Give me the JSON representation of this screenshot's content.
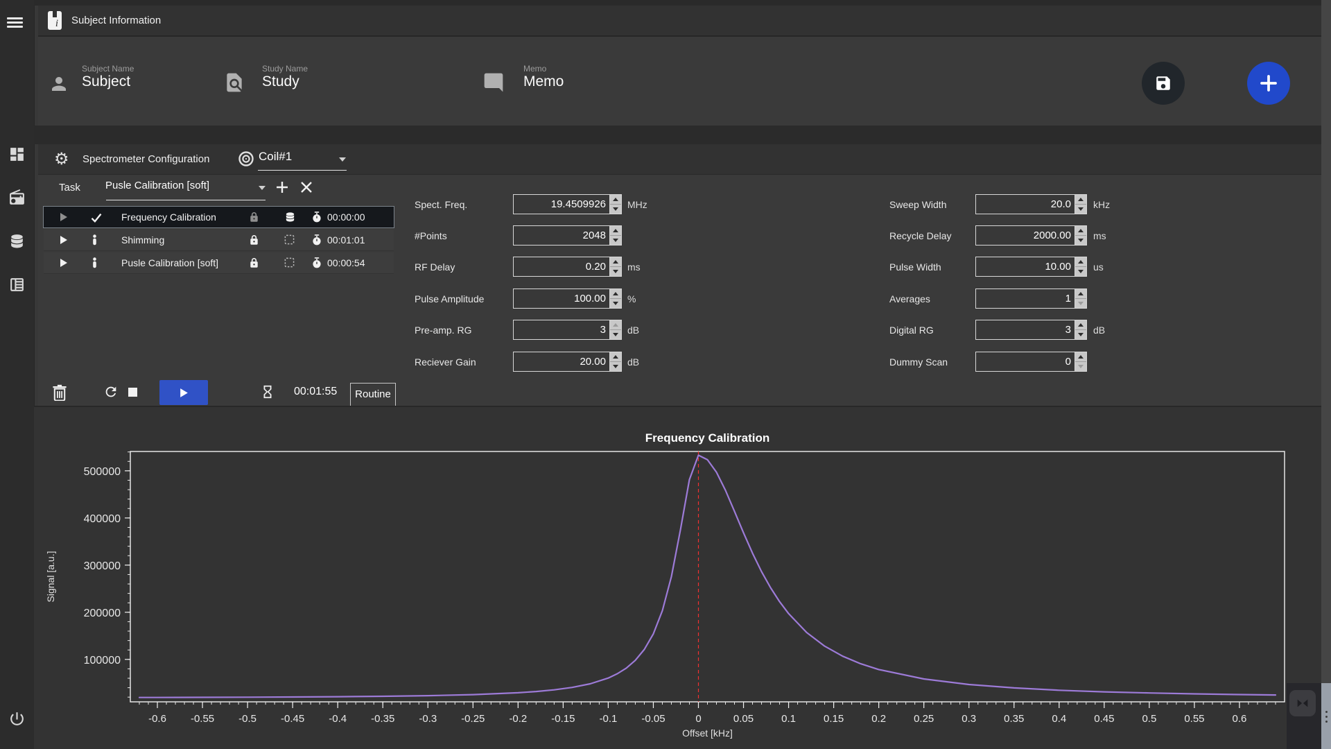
{
  "colors": {
    "background": "#383838",
    "panel_dark": "#323232",
    "sidebar": "#2c2c2c",
    "accent_blue": "#2149cb",
    "play_blue": "#3052c6",
    "line_purple": "#9d7bd8",
    "marker_red": "#f03030",
    "selected_row": "#15181c",
    "input_border": "#d8d8d8"
  },
  "icons": {
    "menu-icon": "hamburger (3 bars)",
    "dashboard-icon": "grid dashboard",
    "radio-icon": "radio device",
    "database-icon": "stacked discs",
    "news-icon": "article card",
    "power-icon": "power symbol",
    "subject-info-icon": "document with i",
    "person-icon": "person silhouette",
    "study-icon": "document with magnifier",
    "memo-icon": "chat bubble",
    "save-icon": "floppy disk",
    "add-icon": "plus",
    "gear-icon": "⚙",
    "coil-icon": "concentric circles",
    "plus-icon": "+",
    "close-icon": "✕",
    "check-icon": "✓",
    "lock-icon": "padlock",
    "region-icon": "dashed square",
    "stopwatch-icon": "timer",
    "trash-icon": "trash can",
    "rerun-icon": "refresh arrow",
    "stop-icon": "square",
    "play-icon": "triangle",
    "hourglass-icon": "hourglass",
    "flip-icon": "bowtie triangles"
  },
  "titlebar": {
    "title": "Subject Information"
  },
  "subject_panel": {
    "fields": [
      {
        "icon": "person-icon",
        "label": "Subject Name",
        "value": "Subject"
      },
      {
        "icon": "study-icon",
        "label": "Study Name",
        "value": "Study"
      },
      {
        "icon": "memo-icon",
        "label": "Memo",
        "value": "Memo"
      }
    ]
  },
  "config": {
    "title": "Spectrometer Configuration",
    "coil_select": {
      "value": "Coil#1"
    },
    "task_label": "Task",
    "task_select": {
      "value": "Pusle Calibration [soft]"
    },
    "tasks": [
      {
        "name": "Frequency Calibration",
        "time": "00:00:00",
        "status_icon": "check-icon",
        "type_icon": "database-icon",
        "selected": true
      },
      {
        "name": "Shimming",
        "time": "00:01:01",
        "status_icon": "person-icon",
        "type_icon": "region-icon",
        "selected": false
      },
      {
        "name": "Pusle Calibration [soft]",
        "time": "00:00:54",
        "status_icon": "person-icon",
        "type_icon": "region-icon",
        "selected": false
      }
    ],
    "parameters_left": [
      {
        "label": "Spect. Freq.",
        "value": "19.4509926",
        "unit": "MHz",
        "dim": null
      },
      {
        "label": "#Points",
        "value": "2048",
        "unit": "",
        "dim": null
      },
      {
        "label": "RF Delay",
        "value": "0.20",
        "unit": "ms",
        "dim": null
      },
      {
        "label": "Pulse Amplitude",
        "value": "100.00",
        "unit": "%",
        "dim": null
      },
      {
        "label": "Pre-amp. RG",
        "value": "3",
        "unit": "dB",
        "dim": "up"
      },
      {
        "label": "Reciever Gain",
        "value": "20.00",
        "unit": "dB",
        "dim": null
      }
    ],
    "parameters_right": [
      {
        "label": "Sweep Width",
        "value": "20.0",
        "unit": "kHz",
        "dim": null
      },
      {
        "label": "Recycle Delay",
        "value": "2000.00",
        "unit": "ms",
        "dim": null
      },
      {
        "label": "Pulse Width",
        "value": "10.00",
        "unit": "us",
        "dim": null
      },
      {
        "label": "Averages",
        "value": "1",
        "unit": "",
        "dim": "down"
      },
      {
        "label": "Digital RG",
        "value": "3",
        "unit": "dB",
        "dim": null
      },
      {
        "label": "Dummy Scan",
        "value": "0",
        "unit": "",
        "dim": "down"
      }
    ],
    "controls": {
      "elapsed": "00:01:55",
      "tab_label": "Routine"
    }
  },
  "chart_data": {
    "type": "line",
    "title": "Frequency Calibration",
    "xlabel": "Offset [kHz]",
    "ylabel": "Signal [a.u.]",
    "xlim": [
      -0.63,
      0.65
    ],
    "ylim": [
      10000,
      541000
    ],
    "x_tick_min": -0.6,
    "x_tick_max": 0.6,
    "x_tick_step": 0.05,
    "x_minor_step": 0.01,
    "y_ticks": [
      100000,
      200000,
      300000,
      400000,
      500000
    ],
    "y_minor_step": 20000,
    "grid": false,
    "legend": null,
    "line_color": "#9d7bd8",
    "marker_line": {
      "x": 0,
      "color": "#f03030",
      "style": "dashed"
    },
    "series": [
      {
        "name": "signal",
        "x": [
          -0.62,
          -0.6,
          -0.55,
          -0.5,
          -0.45,
          -0.4,
          -0.35,
          -0.3,
          -0.25,
          -0.2,
          -0.18,
          -0.16,
          -0.14,
          -0.12,
          -0.1,
          -0.09,
          -0.08,
          -0.07,
          -0.06,
          -0.05,
          -0.04,
          -0.03,
          -0.02,
          -0.01,
          0,
          0.01,
          0.02,
          0.03,
          0.04,
          0.05,
          0.06,
          0.07,
          0.08,
          0.09,
          0.1,
          0.12,
          0.14,
          0.16,
          0.18,
          0.2,
          0.25,
          0.3,
          0.35,
          0.4,
          0.45,
          0.5,
          0.55,
          0.6,
          0.64
        ],
        "y": [
          19200,
          19300,
          19550,
          19850,
          20300,
          20900,
          21800,
          23100,
          25300,
          29300,
          31900,
          35500,
          40600,
          48300,
          60500,
          69500,
          81500,
          97900,
          121000,
          154300,
          203400,
          275500,
          374500,
          481500,
          533000,
          523500,
          497000,
          458600,
          414100,
          368600,
          325400,
          286300,
          252000,
          222400,
          197100,
          157100,
          128100,
          106800,
          90800,
          78600,
          58500,
          46800,
          39500,
          34600,
          31200,
          28800,
          26900,
          25500,
          24600
        ]
      }
    ]
  }
}
